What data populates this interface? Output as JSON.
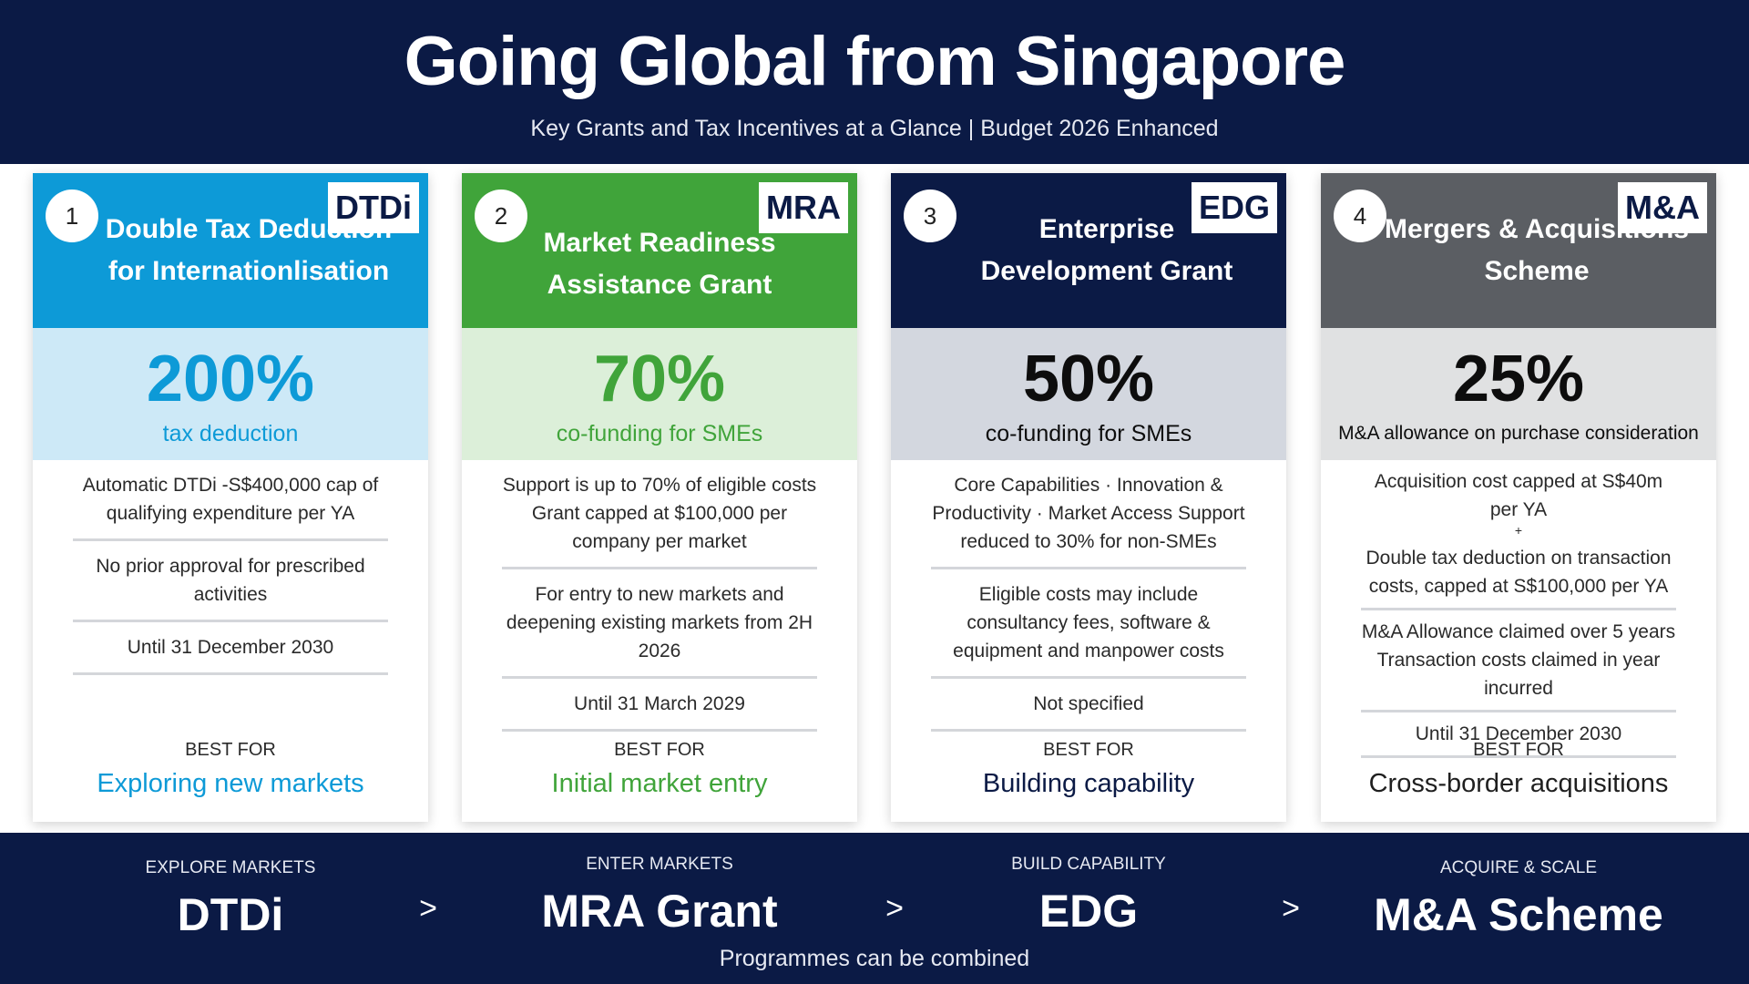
{
  "header": {
    "title": "Going Global from Singapore",
    "subtitle": "Key Grants and Tax Incentives at a Glance | Budget 2026 Enhanced"
  },
  "colors": {
    "navy": "#0b1a45",
    "blue": "#0d9ad7",
    "green": "#40a43a",
    "grey": "#5b5e63"
  },
  "cards": [
    {
      "number": "1",
      "abbr": "DTDi",
      "title": "Double Tax Deduction for Internationlisation",
      "percent": "200%",
      "percent_label": "tax deduction",
      "details": [
        "Automatic DTDi -S$400,000 cap of qualifying expenditure per YA",
        "No prior approval for prescribed activities",
        "Until 31 December 2030"
      ],
      "best_for_label": "BEST FOR",
      "best_for": "Exploring new markets"
    },
    {
      "number": "2",
      "abbr": "MRA",
      "title": "Market Readiness Assistance Grant",
      "percent": "70%",
      "percent_label": "co-funding for SMEs",
      "details": [
        "Support is up to 70% of eligible costs Grant capped at $100,000 per company per market",
        "For entry to new markets and deepening existing markets from 2H 2026",
        "Until 31 March 2029"
      ],
      "best_for_label": "BEST FOR",
      "best_for": "Initial market entry"
    },
    {
      "number": "3",
      "abbr": "EDG",
      "title": "Enterprise Development Grant",
      "percent": "50%",
      "percent_label": "co-funding for SMEs",
      "details": [
        "Core Capabilities · Innovation & Productivity · Market Access Support reduced to 30% for non-SMEs",
        "Eligible costs may include consultancy fees, software & equipment and manpower costs",
        "Not specified"
      ],
      "best_for_label": "BEST FOR",
      "best_for": "Building capability"
    },
    {
      "number": "4",
      "abbr": "M&A",
      "title": "Mergers & Acquisitions Scheme",
      "percent": "25%",
      "percent_label": "M&A allowance on purchase consideration",
      "details": [
        "Acquisition cost capped at S$40m per YA",
        "+",
        "Double tax deduction on transaction costs, capped at S$100,000 per YA",
        "M&A Allowance claimed over 5 years Transaction costs claimed in year incurred",
        "Until 31 December 2030"
      ],
      "best_for_label": "BEST FOR",
      "best_for": "Cross-border acquisitions"
    }
  ],
  "footer": {
    "steps": [
      {
        "label": "EXPLORE MARKETS",
        "value": "DTDi"
      },
      {
        "label": "ENTER MARKETS",
        "value": "MRA Grant"
      },
      {
        "label": "BUILD CAPABILITY",
        "value": "EDG"
      },
      {
        "label": "ACQUIRE & SCALE",
        "value": "M&A Scheme"
      }
    ],
    "arrow": ">",
    "note": "Programmes can be combined"
  }
}
